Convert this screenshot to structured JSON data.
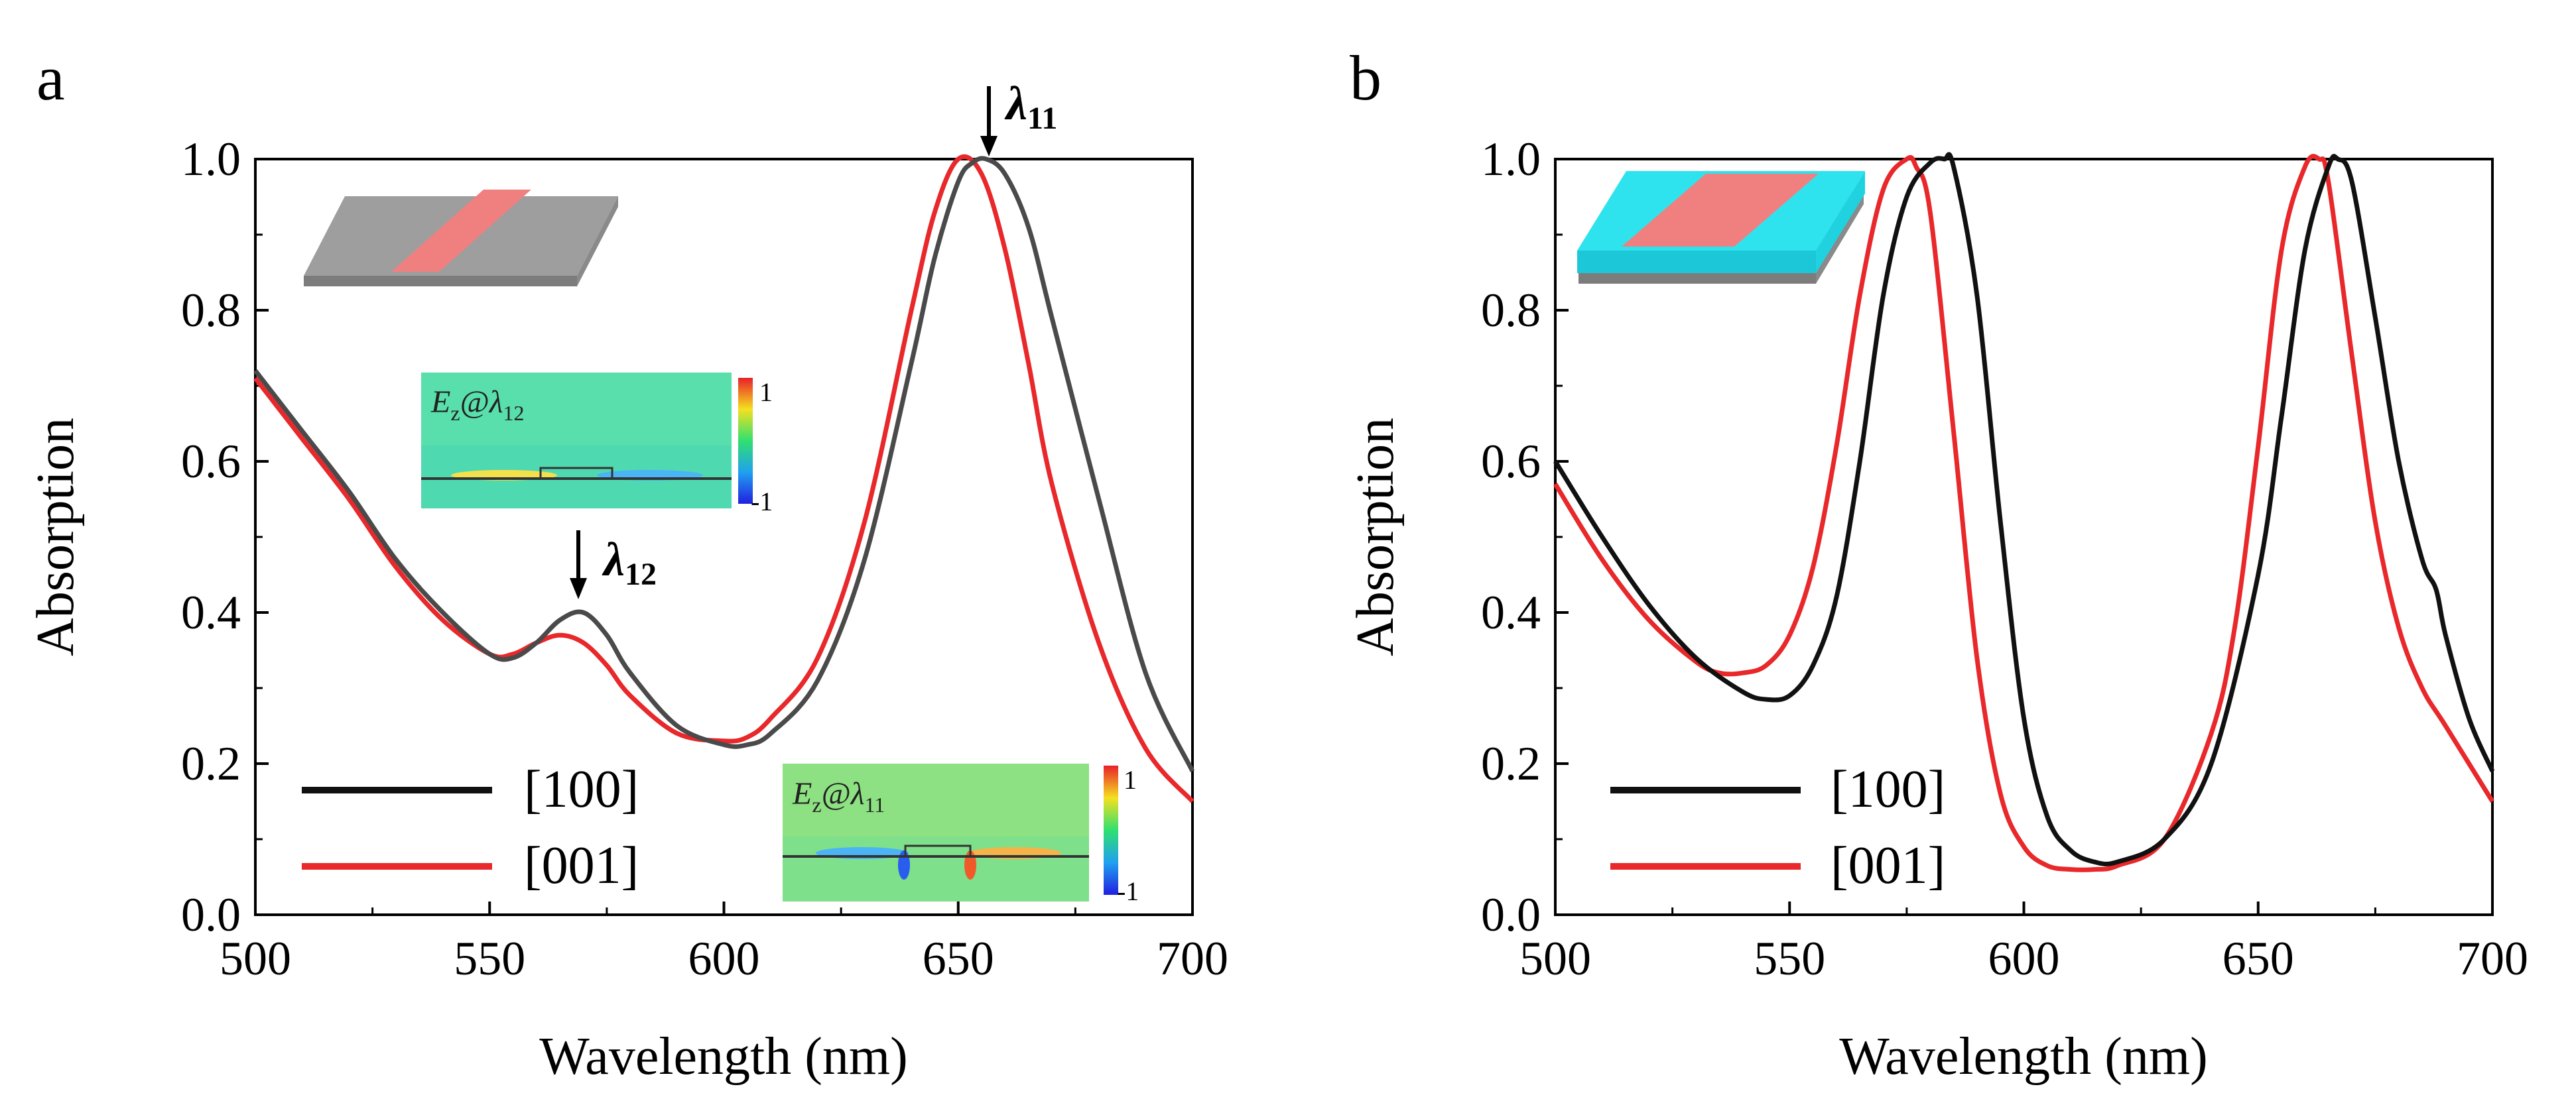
{
  "colors": {
    "s100": "#111111",
    "s100_a": "#4a4a4a",
    "s001": "#e8282a"
  },
  "panels": [
    {
      "letter": "a",
      "xlabel": "Wavelength (nm)",
      "ylabel": "Absorption",
      "xticks": [
        "500",
        "550",
        "600",
        "650",
        "700"
      ],
      "yticks": [
        "0.0",
        "0.2",
        "0.4",
        "0.6",
        "0.8",
        "1.0"
      ],
      "legend": [
        "[100]",
        "[001]"
      ],
      "annotations": [
        {
          "symbol": "λ",
          "sub": "11",
          "x": 656
        },
        {
          "symbol": "λ",
          "sub": "12",
          "x": 570
        }
      ],
      "field_maps": [
        {
          "label": "E",
          "sub_field": "z",
          "at": "@λ",
          "sub_mode": "12",
          "cbar_max": "1",
          "cbar_min": "-1"
        },
        {
          "label": "E",
          "sub_field": "z",
          "at": "@λ",
          "sub_mode": "11",
          "cbar_max": "1",
          "cbar_min": "-1"
        }
      ]
    },
    {
      "letter": "b",
      "xlabel": "Wavelength (nm)",
      "ylabel": "Absorption",
      "xticks": [
        "500",
        "550",
        "600",
        "650",
        "700"
      ],
      "yticks": [
        "0.0",
        "0.2",
        "0.4",
        "0.6",
        "0.8",
        "1.0"
      ],
      "legend": [
        "[100]",
        "[001]"
      ]
    }
  ],
  "chart_data": [
    {
      "type": "line",
      "panel": "a",
      "xlabel": "Wavelength (nm)",
      "ylabel": "Absorption",
      "xlim": [
        500,
        700
      ],
      "ylim": [
        0,
        1
      ],
      "series": [
        {
          "name": "[100]",
          "x": [
            500,
            505,
            510,
            520,
            530,
            540,
            550,
            555,
            560,
            565,
            570,
            575,
            580,
            590,
            600,
            605,
            610,
            620,
            630,
            640,
            645,
            650,
            653,
            656,
            660,
            665,
            670,
            680,
            690,
            700
          ],
          "y": [
            0.72,
            0.68,
            0.64,
            0.56,
            0.47,
            0.4,
            0.345,
            0.34,
            0.36,
            0.39,
            0.4,
            0.37,
            0.32,
            0.25,
            0.225,
            0.225,
            0.24,
            0.31,
            0.47,
            0.73,
            0.87,
            0.97,
            0.995,
            1.0,
            0.98,
            0.91,
            0.79,
            0.55,
            0.32,
            0.19
          ]
        },
        {
          "name": "[001]",
          "x": [
            500,
            505,
            510,
            520,
            530,
            540,
            550,
            555,
            560,
            565,
            570,
            575,
            580,
            590,
            600,
            605,
            610,
            620,
            630,
            640,
            645,
            650,
            655,
            660,
            665,
            670,
            680,
            690,
            700
          ],
          "y": [
            0.71,
            0.67,
            0.63,
            0.55,
            0.46,
            0.39,
            0.345,
            0.345,
            0.36,
            0.37,
            0.36,
            0.33,
            0.29,
            0.24,
            0.23,
            0.235,
            0.26,
            0.34,
            0.52,
            0.8,
            0.93,
            1.0,
            0.98,
            0.88,
            0.73,
            0.57,
            0.36,
            0.22,
            0.15
          ]
        }
      ],
      "annotations": [
        "λ11",
        "λ12"
      ]
    },
    {
      "type": "line",
      "panel": "b",
      "xlabel": "Wavelength (nm)",
      "ylabel": "Absorption",
      "xlim": [
        500,
        700
      ],
      "ylim": [
        0,
        1
      ],
      "series": [
        {
          "name": "[100]",
          "x": [
            500,
            510,
            520,
            530,
            540,
            545,
            550,
            555,
            560,
            565,
            570,
            575,
            580,
            583,
            585,
            590,
            595,
            600,
            605,
            610,
            615,
            620,
            630,
            640,
            650,
            655,
            660,
            665,
            667,
            670,
            675,
            680,
            685,
            688,
            690,
            695,
            700
          ],
          "y": [
            0.6,
            0.5,
            0.41,
            0.34,
            0.295,
            0.285,
            0.29,
            0.33,
            0.42,
            0.6,
            0.82,
            0.95,
            0.995,
            1.0,
            0.99,
            0.82,
            0.52,
            0.26,
            0.13,
            0.085,
            0.07,
            0.07,
            0.1,
            0.2,
            0.45,
            0.66,
            0.88,
            0.99,
            1.0,
            0.97,
            0.79,
            0.6,
            0.47,
            0.43,
            0.37,
            0.26,
            0.19
          ]
        },
        {
          "name": "[001]",
          "x": [
            500,
            510,
            520,
            530,
            535,
            540,
            545,
            550,
            555,
            560,
            565,
            570,
            575,
            577,
            580,
            585,
            590,
            595,
            600,
            605,
            610,
            615,
            620,
            630,
            640,
            645,
            650,
            655,
            660,
            663,
            665,
            670,
            675,
            680,
            685,
            690,
            700
          ],
          "y": [
            0.57,
            0.47,
            0.39,
            0.335,
            0.32,
            0.32,
            0.33,
            0.37,
            0.46,
            0.62,
            0.82,
            0.96,
            1.0,
            0.99,
            0.93,
            0.64,
            0.34,
            0.16,
            0.09,
            0.065,
            0.06,
            0.06,
            0.065,
            0.1,
            0.24,
            0.38,
            0.62,
            0.88,
            0.99,
            1.0,
            0.97,
            0.74,
            0.52,
            0.38,
            0.3,
            0.25,
            0.15
          ]
        }
      ]
    }
  ]
}
